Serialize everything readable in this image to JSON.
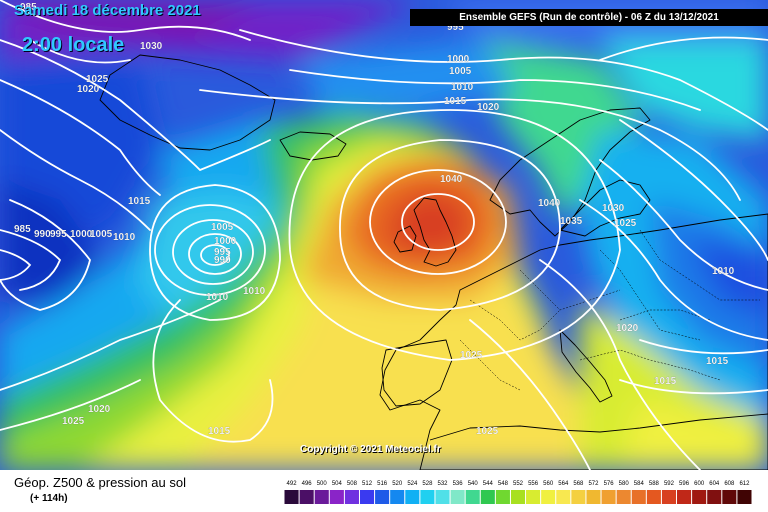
{
  "header": {
    "date": "Samedi 18 décembre 2021",
    "local_time": "2:00 locale",
    "run_info": "Ensemble GEFS  (Run de contrôle)  -  06 Z du 13/12/2021"
  },
  "map": {
    "copyright": "Copyright © 2021 Meteociel.fr",
    "isobar_labels": [
      "985",
      "1030",
      "995",
      "1000",
      "1005",
      "1010",
      "1015",
      "1020",
      "1025",
      "1020",
      "1015",
      "1040",
      "1040",
      "1035",
      "1030",
      "1025",
      "1010",
      "1005",
      "1000",
      "995",
      "990",
      "1010",
      "1010",
      "1015",
      "1020",
      "1025",
      "1020",
      "1025",
      "1015",
      "1025",
      "1015",
      "985",
      "990",
      "995",
      "1000",
      "1005",
      "1010"
    ],
    "pressure_centers": [
      {
        "type": "high",
        "value": "1040",
        "region": "British Isles"
      },
      {
        "type": "low",
        "value": "990",
        "region": "Mid-Atlantic"
      }
    ],
    "colors": {
      "ocean_background": "#2a5adc",
      "coastline": "#000000",
      "isobar": "#ffffff"
    }
  },
  "footer": {
    "parameter": "Géop. Z500 & pression au sol",
    "lead_time": "(+ 114h)"
  },
  "legend": {
    "levels": [
      "492",
      "496",
      "500",
      "504",
      "508",
      "512",
      "516",
      "520",
      "524",
      "528",
      "532",
      "536",
      "540",
      "544",
      "548",
      "552",
      "556",
      "560",
      "564",
      "568",
      "572",
      "576",
      "580",
      "584",
      "588",
      "592",
      "596",
      "600",
      "604",
      "608",
      "612"
    ],
    "colors": [
      "#2a0a3a",
      "#4b0f66",
      "#6a1a9a",
      "#8a24c8",
      "#7030e0",
      "#3a3af0",
      "#1e5ae8",
      "#1488f0",
      "#10b0f4",
      "#20d0f0",
      "#50e0e8",
      "#80e8c8",
      "#40d890",
      "#30c850",
      "#70d830",
      "#a8e020",
      "#d8ec30",
      "#f0f040",
      "#f8e850",
      "#f4d040",
      "#f0b830",
      "#f0a030",
      "#ec8830",
      "#e87028",
      "#e45820",
      "#d84020",
      "#c02818",
      "#a01810",
      "#801010",
      "#600808",
      "#400404"
    ]
  }
}
